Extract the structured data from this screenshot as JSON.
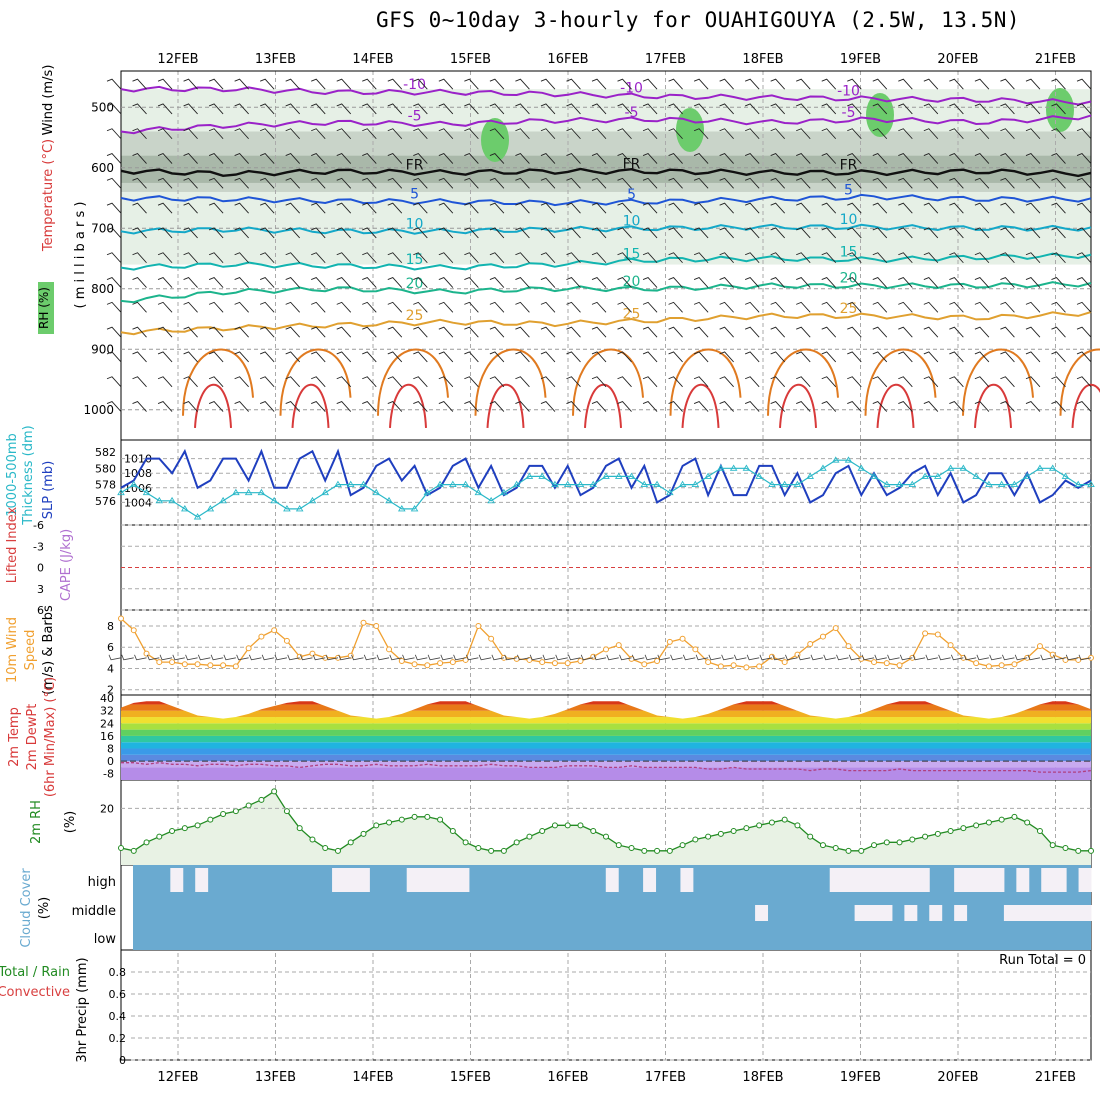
{
  "title": "GFS 0~10day 3-hourly for OUAHIGOUYA (2.5W, 13.5N)",
  "dates": [
    "12FEB",
    "13FEB",
    "14FEB",
    "15FEB",
    "16FEB",
    "17FEB",
    "18FEB",
    "19FEB",
    "20FEB",
    "21FEB"
  ],
  "colors": {
    "frame": "#000000",
    "grid": "#aaaaaa",
    "rh_light": "#e6f0e6",
    "rh_mid": "#c9d4c9",
    "rh_dark": "#a9b8a9",
    "rh_green": "#6ccc6c",
    "t_neg10": "#9a22c8",
    "t_fr": "#111111",
    "t_5": "#1f55d6",
    "t_10": "#14a8c8",
    "t_15": "#12b4b0",
    "t_20": "#1cb48c",
    "t_25": "#e0a030",
    "t_30": "#e07a20",
    "t_35": "#d83a3a",
    "slp": "#1f3fbf",
    "thick": "#2ab8c8",
    "lifted": "#d84040",
    "wind10": "#f0a030",
    "rhline": "#228b22",
    "cloud": "#6aaad0",
    "cloud_gap": "#f4f0f6"
  },
  "labels": {
    "p1": {
      "rh": "RH (%)",
      "temp": "Temperature (°C)",
      "wind": "Wind (m/s)",
      "units": "( m i l l i b a r s )"
    },
    "p2": {
      "l1": "1000-500mb",
      "l2": "Thickness (dm)",
      "slp": "SLP (mb)"
    },
    "p3": {
      "li": "Lifted Index",
      "cape": "CAPE (J/kg)"
    },
    "p4": {
      "l1": "10m Wind",
      "l2": "Speed",
      "l3": "(m/s) & Barbs"
    },
    "p5": {
      "l1": "2m Temp",
      "l2": "2m DewPt",
      "l3": "(6hr Min/Max) (°C)"
    },
    "p6": {
      "l1": "2m RH",
      "l2": "(%)"
    },
    "p7": {
      "l1": "Cloud Cover",
      "l2": "(%)",
      "high": "high",
      "middle": "middle",
      "low": "low"
    },
    "p8": {
      "l1": "Total / Rain",
      "l2": "Convective",
      "l3": "3hr Precip (mm)",
      "run_total": "Run Total = 0"
    }
  },
  "chart_data": [
    {
      "type": "contour",
      "name": "vertical profile",
      "y_ticks": [
        "500",
        "600",
        "700",
        "800",
        "900",
        "1000"
      ],
      "ylim": [
        1050,
        440
      ],
      "temperature_levels": [
        {
          "label": "-10",
          "values": [
            470,
            470,
            475,
            475,
            478,
            482,
            484,
            486,
            488,
            492
          ],
          "color_key": "t_neg10"
        },
        {
          "label": "-5",
          "values": [
            540,
            530,
            525,
            528,
            522,
            520,
            525,
            520,
            525,
            515
          ],
          "color_key": "t_neg10"
        },
        {
          "label": "FR",
          "values": [
            605,
            610,
            606,
            608,
            606,
            606,
            608,
            608,
            606,
            610
          ],
          "color_key": "t_fr"
        },
        {
          "label": "5",
          "values": [
            650,
            652,
            655,
            656,
            658,
            656,
            652,
            648,
            652,
            652
          ],
          "color_key": "t_5"
        },
        {
          "label": "10",
          "values": [
            705,
            702,
            705,
            705,
            702,
            700,
            698,
            698,
            700,
            700
          ],
          "color_key": "t_10"
        },
        {
          "label": "15",
          "values": [
            765,
            760,
            762,
            765,
            760,
            752,
            750,
            752,
            748,
            745
          ],
          "color_key": "t_15"
        },
        {
          "label": "20",
          "values": [
            820,
            805,
            800,
            805,
            800,
            800,
            795,
            795,
            795,
            792
          ],
          "color_key": "t_20"
        },
        {
          "label": "25",
          "values": [
            872,
            865,
            860,
            855,
            858,
            852,
            845,
            845,
            848,
            840
          ],
          "color_key": "t_25"
        }
      ],
      "rh_band_mbar": [
        [
          590,
          700
        ],
        [
          560,
          640
        ],
        [
          480,
          560
        ]
      ]
    },
    {
      "type": "line",
      "name": "SLP and thickness",
      "y_ticks_left": [
        "582",
        "580",
        "578",
        "576"
      ],
      "y_ticks_right": [
        "1010",
        "1008",
        "1006",
        "1004"
      ],
      "series": [
        {
          "name": "SLP (mb)",
          "ylim": [
            1002,
            1012
          ],
          "values": [
            1006,
            1007,
            1010,
            1010,
            1008,
            1011,
            1006,
            1007,
            1010,
            1010,
            1007,
            1011,
            1006,
            1006,
            1010,
            1011,
            1007,
            1011,
            1005,
            1006,
            1009,
            1010,
            1007,
            1009,
            1005,
            1006,
            1009,
            1010,
            1006,
            1009,
            1005,
            1006,
            1009,
            1009,
            1006,
            1009,
            1005,
            1006,
            1009,
            1010,
            1006,
            1009,
            1004,
            1005,
            1009,
            1010,
            1005,
            1009,
            1005,
            1005,
            1009,
            1009,
            1005,
            1008,
            1004,
            1005,
            1008,
            1009,
            1005,
            1008,
            1005,
            1006,
            1008,
            1009,
            1005,
            1008,
            1004,
            1005,
            1008,
            1008,
            1005,
            1008,
            1004,
            1005,
            1007,
            1006,
            1007
          ],
          "color_key": "slp"
        },
        {
          "name": "Thickness (dm)",
          "ylim": [
            574,
            583
          ],
          "values": [
            577,
            578,
            577,
            576,
            576,
            575,
            574,
            575,
            576,
            577,
            577,
            577,
            576,
            575,
            575,
            576,
            577,
            578,
            578,
            578,
            577,
            576,
            575,
            575,
            577,
            578,
            578,
            578,
            577,
            576,
            577,
            578,
            579,
            579,
            578,
            578,
            578,
            578,
            579,
            579,
            579,
            578,
            578,
            577,
            578,
            578,
            579,
            580,
            580,
            580,
            579,
            578,
            578,
            578,
            579,
            580,
            581,
            581,
            580,
            579,
            578,
            578,
            578,
            579,
            579,
            580,
            580,
            579,
            578,
            578,
            578,
            579,
            580,
            580,
            579,
            578,
            578
          ],
          "color_key": "thick"
        }
      ]
    },
    {
      "type": "line",
      "name": "Lifted Index / CAPE",
      "y_ticks": [
        "-6",
        "-3",
        "0",
        "3",
        "6"
      ],
      "ylim": [
        6,
        -6
      ],
      "series": [
        {
          "name": "Lifted Index",
          "values": [
            0
          ]
        }
      ]
    },
    {
      "type": "line",
      "name": "10m wind speed",
      "y_ticks": [
        "8",
        "6",
        "4",
        "2"
      ],
      "ylim": [
        1.5,
        9.5
      ],
      "series": [
        {
          "name": "Speed",
          "values": [
            8.7,
            7.6,
            5.4,
            4.6,
            4.6,
            4.4,
            4.4,
            4.3,
            4.3,
            4.2,
            5.9,
            7.0,
            7.6,
            6.6,
            5.1,
            5.4,
            5.0,
            5.0,
            5.2,
            8.3,
            8.0,
            5.8,
            4.7,
            4.4,
            4.3,
            4.5,
            4.6,
            4.8,
            8.0,
            6.8,
            5.0,
            4.9,
            4.8,
            4.6,
            4.5,
            4.5,
            4.7,
            5.1,
            5.8,
            6.2,
            4.9,
            4.4,
            4.7,
            6.5,
            6.8,
            5.8,
            4.6,
            4.2,
            4.3,
            4.1,
            4.2,
            5.1,
            4.6,
            5.3,
            6.3,
            7.0,
            7.8,
            6.1,
            4.9,
            4.6,
            4.5,
            4.3,
            5.0,
            7.3,
            7.2,
            6.2,
            5.0,
            4.5,
            4.2,
            4.3,
            4.4,
            5.0,
            6.1,
            5.3,
            4.8,
            4.8,
            5.0
          ],
          "color_key": "wind10"
        }
      ]
    },
    {
      "type": "area",
      "name": "2m temperature and dewpoint",
      "y_ticks": [
        "40",
        "32",
        "24",
        "16",
        "8",
        "0",
        "-8"
      ],
      "ylim": [
        -12,
        42
      ],
      "series": [
        {
          "name": "2m Temp",
          "values": [
            34,
            37,
            38,
            38,
            35,
            32,
            29,
            28,
            27,
            28,
            30,
            33,
            35,
            37,
            38,
            38,
            35,
            32,
            29,
            28,
            27,
            28,
            30,
            33,
            36,
            38,
            38,
            38,
            35,
            32,
            29,
            28,
            27,
            28,
            30,
            33,
            36,
            38,
            38,
            38,
            35,
            32,
            29,
            28,
            27,
            28,
            30,
            33,
            36,
            38,
            38,
            38,
            35,
            32,
            29,
            28,
            27,
            28,
            30,
            33,
            36,
            38,
            38,
            38,
            35,
            32,
            29,
            28,
            27,
            28,
            30,
            33,
            36,
            38,
            38,
            36,
            33
          ]
        },
        {
          "name": "2m DewPt",
          "values": [
            -1,
            -1,
            -2,
            -1,
            -2,
            -2,
            -3,
            -2,
            -2,
            -3,
            -2,
            -2,
            -3,
            -3,
            -4,
            -3,
            -2,
            -2,
            -3,
            -3,
            -2,
            -3,
            -3,
            -3,
            -2,
            -3,
            -3,
            -3,
            -3,
            -2,
            -3,
            -3,
            -4,
            -4,
            -4,
            -3,
            -3,
            -3,
            -4,
            -4,
            -3,
            -4,
            -4,
            -4,
            -4,
            -4,
            -5,
            -5,
            -4,
            -5,
            -5,
            -5,
            -5,
            -5,
            -6,
            -5,
            -5,
            -6,
            -6,
            -6,
            -6,
            -5,
            -6,
            -6,
            -6,
            -6,
            -6,
            -6,
            -6,
            -6,
            -6,
            -6,
            -7,
            -7,
            -7,
            -7,
            -6
          ]
        }
      ]
    },
    {
      "type": "line",
      "name": "2m relative humidity",
      "y_ticks": [
        "20"
      ],
      "ylim": [
        0,
        30
      ],
      "series": [
        {
          "name": "2m RH",
          "values": [
            6,
            5,
            8,
            10,
            12,
            13,
            14,
            16,
            18,
            19,
            21,
            23,
            26,
            19,
            13,
            9,
            6,
            5,
            8,
            11,
            14,
            15,
            16,
            17,
            17,
            16,
            12,
            8,
            6,
            5,
            5,
            8,
            10,
            12,
            14,
            14,
            14,
            12,
            10,
            7,
            6,
            5,
            5,
            5,
            7,
            9,
            10,
            11,
            12,
            13,
            14,
            15,
            16,
            14,
            10,
            7,
            6,
            5,
            5,
            7,
            8,
            8,
            9,
            10,
            11,
            12,
            13,
            14,
            15,
            16,
            17,
            15,
            12,
            7,
            6,
            5,
            5
          ]
        }
      ]
    },
    {
      "type": "heatmap",
      "name": "Cloud Cover",
      "rows": [
        "high",
        "middle",
        "low"
      ],
      "high_clear": [
        0,
        0,
        0,
        1,
        0,
        1,
        0,
        0,
        0,
        0,
        0,
        0,
        0,
        0,
        0,
        0,
        1,
        1,
        1,
        0,
        0,
        0,
        1,
        1,
        1,
        1,
        1,
        0,
        0,
        0,
        0,
        0,
        0,
        0,
        0,
        0,
        0,
        0,
        1,
        0,
        0,
        1,
        0,
        0,
        1,
        0,
        0,
        0,
        0,
        0,
        0,
        0,
        0,
        0,
        0,
        0,
        1,
        1,
        1,
        1,
        1,
        1,
        1,
        1,
        0,
        0,
        1,
        1,
        1,
        1,
        0,
        1,
        0,
        1,
        1,
        0,
        1
      ],
      "middle_clear": [
        0,
        0,
        0,
        0,
        0,
        0,
        0,
        0,
        0,
        0,
        0,
        0,
        0,
        0,
        0,
        0,
        0,
        0,
        0,
        0,
        0,
        0,
        0,
        0,
        0,
        0,
        0,
        0,
        0,
        0,
        0,
        0,
        0,
        0,
        0,
        0,
        0,
        0,
        0,
        0,
        0,
        0,
        0,
        0,
        0,
        0,
        0,
        0,
        0,
        0,
        1,
        0,
        0,
        0,
        0,
        0,
        0,
        0,
        1,
        1,
        1,
        0,
        1,
        0,
        1,
        0,
        1,
        0,
        0,
        0,
        1,
        1,
        1,
        1,
        1,
        1,
        1
      ]
    },
    {
      "type": "bar",
      "name": "3hr Precip",
      "y_ticks": [
        "0.8",
        "0.6",
        "0.4",
        "0.2",
        "0"
      ],
      "ylim": [
        0,
        1
      ],
      "values": []
    }
  ]
}
